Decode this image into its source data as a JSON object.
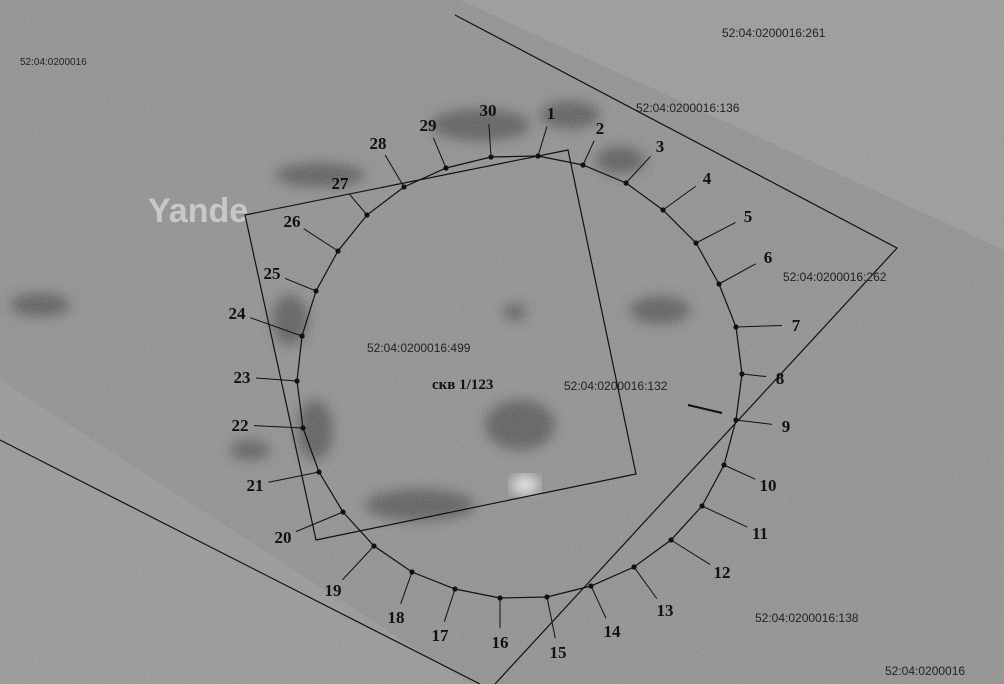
{
  "watermark": "Yande",
  "parcels": [
    "52:04:0200016",
    "52:04:0200016:261",
    "52:04:0200016:136",
    "52:04:0200016:262",
    "52:04:0200016:499",
    "52:04:0200016:132",
    "52:04:0200016:138",
    "52:04:0200016"
  ],
  "well_label": "скв 1/123",
  "point_labels": [
    "1",
    "2",
    "3",
    "4",
    "5",
    "6",
    "7",
    "8",
    "9",
    "10",
    "11",
    "12",
    "13",
    "14",
    "15",
    "16",
    "17",
    "18",
    "19",
    "20",
    "21",
    "22",
    "23",
    "24",
    "25",
    "26",
    "27",
    "28",
    "29",
    "30"
  ]
}
